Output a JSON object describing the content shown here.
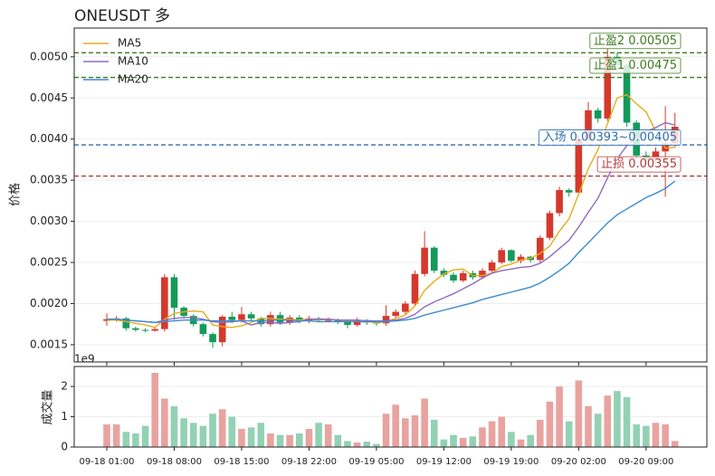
{
  "chart_data": [
    {
      "type": "candlestick",
      "title": "ONEUSDT 多",
      "ylabel": "价格",
      "open": [
        0.00179,
        0.00181,
        0.00182,
        0.0017,
        0.00168,
        0.00167,
        0.00169,
        0.00232,
        0.00195,
        0.00185,
        0.00175,
        0.00163,
        0.00153,
        0.00184,
        0.0018,
        0.00187,
        0.00182,
        0.00175,
        0.00186,
        0.00177,
        0.00183,
        0.00179,
        0.00182,
        0.0018,
        0.0018,
        0.00178,
        0.00174,
        0.0018,
        0.00177,
        0.00176,
        0.00185,
        0.0019,
        0.002,
        0.00236,
        0.00268,
        0.0024,
        0.00235,
        0.00228,
        0.00237,
        0.00232,
        0.0024,
        0.0025,
        0.00265,
        0.00252,
        0.00257,
        0.00253,
        0.0028,
        0.0031,
        0.00338,
        0.00335,
        0.004,
        0.00435,
        0.00425,
        0.005,
        0.0049,
        0.0042,
        0.0038,
        0.00375,
        0.00385,
        0.00395
      ],
      "high": [
        0.00188,
        0.00185,
        0.00184,
        0.00172,
        0.0017,
        0.00171,
        0.00236,
        0.00236,
        0.00197,
        0.00187,
        0.00177,
        0.00165,
        0.00186,
        0.0019,
        0.00196,
        0.0019,
        0.00184,
        0.0019,
        0.0019,
        0.00186,
        0.00186,
        0.00185,
        0.00184,
        0.00183,
        0.00182,
        0.0018,
        0.00183,
        0.00181,
        0.00179,
        0.00198,
        0.00193,
        0.00203,
        0.0024,
        0.00288,
        0.0027,
        0.00243,
        0.00238,
        0.0024,
        0.0024,
        0.00243,
        0.00253,
        0.00268,
        0.00266,
        0.0026,
        0.00258,
        0.00283,
        0.00313,
        0.00342,
        0.0034,
        0.00405,
        0.00445,
        0.00438,
        0.0051,
        0.00505,
        0.00492,
        0.00423,
        0.00385,
        0.0039,
        0.0044,
        0.00432
      ],
      "low": [
        0.00173,
        0.00178,
        0.00167,
        0.00166,
        0.00165,
        0.00166,
        0.00166,
        0.0018,
        0.00182,
        0.00172,
        0.0016,
        0.00146,
        0.00148,
        0.00176,
        0.00177,
        0.00178,
        0.00172,
        0.00172,
        0.00174,
        0.00174,
        0.00176,
        0.00176,
        0.00177,
        0.00177,
        0.00175,
        0.0017,
        0.00172,
        0.00174,
        0.00173,
        0.00173,
        0.00182,
        0.00187,
        0.00198,
        0.00233,
        0.00237,
        0.00232,
        0.00225,
        0.00226,
        0.00229,
        0.0023,
        0.00238,
        0.00248,
        0.0025,
        0.00249,
        0.0025,
        0.0025,
        0.00277,
        0.00306,
        0.0033,
        0.00332,
        0.00396,
        0.0042,
        0.00422,
        0.00485,
        0.00415,
        0.00375,
        0.0037,
        0.00372,
        0.0033,
        0.0039
      ],
      "close": [
        0.00181,
        0.00182,
        0.0017,
        0.00168,
        0.00167,
        0.00169,
        0.00232,
        0.00195,
        0.00185,
        0.00175,
        0.00163,
        0.00153,
        0.00184,
        0.0018,
        0.00187,
        0.00182,
        0.00175,
        0.00186,
        0.00177,
        0.00183,
        0.00179,
        0.00182,
        0.0018,
        0.0018,
        0.00178,
        0.00174,
        0.0018,
        0.00177,
        0.00176,
        0.00185,
        0.0019,
        0.002,
        0.00236,
        0.00268,
        0.0024,
        0.00235,
        0.00228,
        0.00237,
        0.00232,
        0.0024,
        0.0025,
        0.00265,
        0.00252,
        0.00257,
        0.00253,
        0.0028,
        0.0031,
        0.00338,
        0.00335,
        0.004,
        0.00435,
        0.00425,
        0.005,
        0.0049,
        0.0042,
        0.0038,
        0.00375,
        0.00385,
        0.00395,
        0.00415
      ],
      "up_color": "#d5382c",
      "down_color": "#149a5a",
      "series": [
        {
          "name": "MA5",
          "color": "#e6ac1c",
          "values": [
            0.0018,
            0.0018,
            0.00178,
            0.00176,
            0.00174,
            0.00171,
            0.00181,
            0.00188,
            0.0019,
            0.00191,
            0.0019,
            0.00174,
            0.00172,
            0.00171,
            0.00173,
            0.00177,
            0.00182,
            0.00182,
            0.00181,
            0.00181,
            0.0018,
            0.00181,
            0.0018,
            0.00181,
            0.0018,
            0.00179,
            0.00178,
            0.00178,
            0.00177,
            0.00178,
            0.00182,
            0.00186,
            0.00197,
            0.00216,
            0.00227,
            0.00236,
            0.00241,
            0.00242,
            0.00234,
            0.00234,
            0.00237,
            0.00245,
            0.00248,
            0.00253,
            0.00255,
            0.00261,
            0.0027,
            0.00288,
            0.00303,
            0.00333,
            0.00364,
            0.00387,
            0.00419,
            0.0045,
            0.00454,
            0.00443,
            0.00433,
            0.0041,
            0.00389,
            0.0039
          ]
        },
        {
          "name": "MA10",
          "color": "#8c6cc0",
          "values": [
            0.00181,
            0.00181,
            0.0018,
            0.00179,
            0.00178,
            0.00177,
            0.0018,
            0.00182,
            0.00183,
            0.00183,
            0.00181,
            0.00178,
            0.00177,
            0.00178,
            0.00179,
            0.00174,
            0.00177,
            0.00177,
            0.00176,
            0.00177,
            0.00178,
            0.00181,
            0.00181,
            0.00181,
            0.0018,
            0.0018,
            0.0018,
            0.00179,
            0.00179,
            0.00179,
            0.0018,
            0.00182,
            0.00187,
            0.00196,
            0.00202,
            0.00207,
            0.00212,
            0.00218,
            0.00224,
            0.00231,
            0.00237,
            0.0024,
            0.00242,
            0.00244,
            0.00245,
            0.00249,
            0.00257,
            0.00267,
            0.00277,
            0.00293,
            0.00311,
            0.00328,
            0.00353,
            0.00376,
            0.00392,
            0.00402,
            0.00409,
            0.00414,
            0.0042,
            0.00417
          ]
        },
        {
          "name": "MA20",
          "color": "#3b8bd0",
          "values": [
            0.00181,
            0.00181,
            0.0018,
            0.00179,
            0.00178,
            0.00177,
            0.00178,
            0.00179,
            0.0018,
            0.0018,
            0.0018,
            0.00179,
            0.00179,
            0.00179,
            0.00179,
            0.00179,
            0.00179,
            0.0018,
            0.0018,
            0.0018,
            0.00179,
            0.00179,
            0.00178,
            0.00178,
            0.00178,
            0.00178,
            0.00178,
            0.00178,
            0.00178,
            0.00178,
            0.00179,
            0.0018,
            0.00182,
            0.00186,
            0.00189,
            0.00192,
            0.00195,
            0.00198,
            0.00201,
            0.00205,
            0.00208,
            0.00211,
            0.00214,
            0.00217,
            0.0022,
            0.00225,
            0.00232,
            0.0024,
            0.00249,
            0.00262,
            0.00274,
            0.00286,
            0.00298,
            0.00308,
            0.00315,
            0.00322,
            0.00329,
            0.00334,
            0.0034,
            0.00349
          ]
        }
      ],
      "annotations": [
        {
          "label": "止盈2 0.00505",
          "value": 0.00505,
          "color": "#3f7a1f"
        },
        {
          "label": "止盈1 0.00475",
          "value": 0.00475,
          "color": "#3f7a1f"
        },
        {
          "label": "入场 0.00393~0.00405",
          "value": 0.00393,
          "color": "#2f6fb0"
        },
        {
          "label": "止损 0.00355",
          "value": 0.00355,
          "color": "#b23a3a"
        }
      ],
      "ylim": [
        0.00129,
        0.00535
      ],
      "yticks": [
        0.0015,
        {
          "value": 0.002,
          "label": "0.0020"
        },
        0.0025,
        {
          "value": 0.003,
          "label": "0.0030"
        },
        0.0035,
        {
          "value": 0.004,
          "label": "0.0040"
        },
        0.0045,
        {
          "value": 0.005,
          "label": "0.0050"
        }
      ],
      "grid": true,
      "legend": "upper left"
    },
    {
      "type": "bar",
      "ylabel": "成交量",
      "scale_label": "1e9",
      "categories": [
        "09-18 01:00",
        null,
        null,
        null,
        null,
        null,
        null,
        "09-18 08:00",
        null,
        null,
        null,
        null,
        null,
        null,
        "09-18 15:00",
        null,
        null,
        null,
        null,
        null,
        null,
        "09-18 22:00",
        null,
        null,
        null,
        null,
        null,
        null,
        "09-19 05:00",
        null,
        null,
        null,
        null,
        null,
        null,
        "09-19 12:00",
        null,
        null,
        null,
        null,
        null,
        null,
        "09-19 19:00",
        null,
        null,
        null,
        null,
        null,
        null,
        "09-20 02:00",
        null,
        null,
        null,
        null,
        null,
        null,
        "09-20 09:00",
        null,
        null,
        null
      ],
      "values": [
        0.75,
        0.75,
        0.5,
        0.45,
        0.7,
        2.45,
        1.6,
        1.35,
        0.95,
        0.8,
        0.7,
        1.1,
        1.25,
        1.0,
        0.6,
        0.65,
        0.8,
        0.45,
        0.4,
        0.4,
        0.45,
        0.6,
        0.8,
        0.75,
        0.4,
        0.2,
        0.15,
        0.18,
        0.1,
        1.1,
        1.4,
        0.95,
        1.05,
        1.6,
        0.9,
        0.25,
        0.4,
        0.3,
        0.35,
        0.65,
        0.85,
        1.0,
        0.5,
        0.25,
        0.4,
        0.9,
        1.5,
        2.0,
        0.85,
        2.2,
        1.35,
        1.1,
        1.7,
        1.85,
        1.65,
        0.75,
        0.7,
        0.8,
        0.75,
        0.2
      ],
      "up_color": "#e8a3a0",
      "down_color": "#93d1b4",
      "ylim": [
        0,
        2.66
      ],
      "yticks": [
        0,
        1,
        2
      ],
      "grid": true
    }
  ]
}
